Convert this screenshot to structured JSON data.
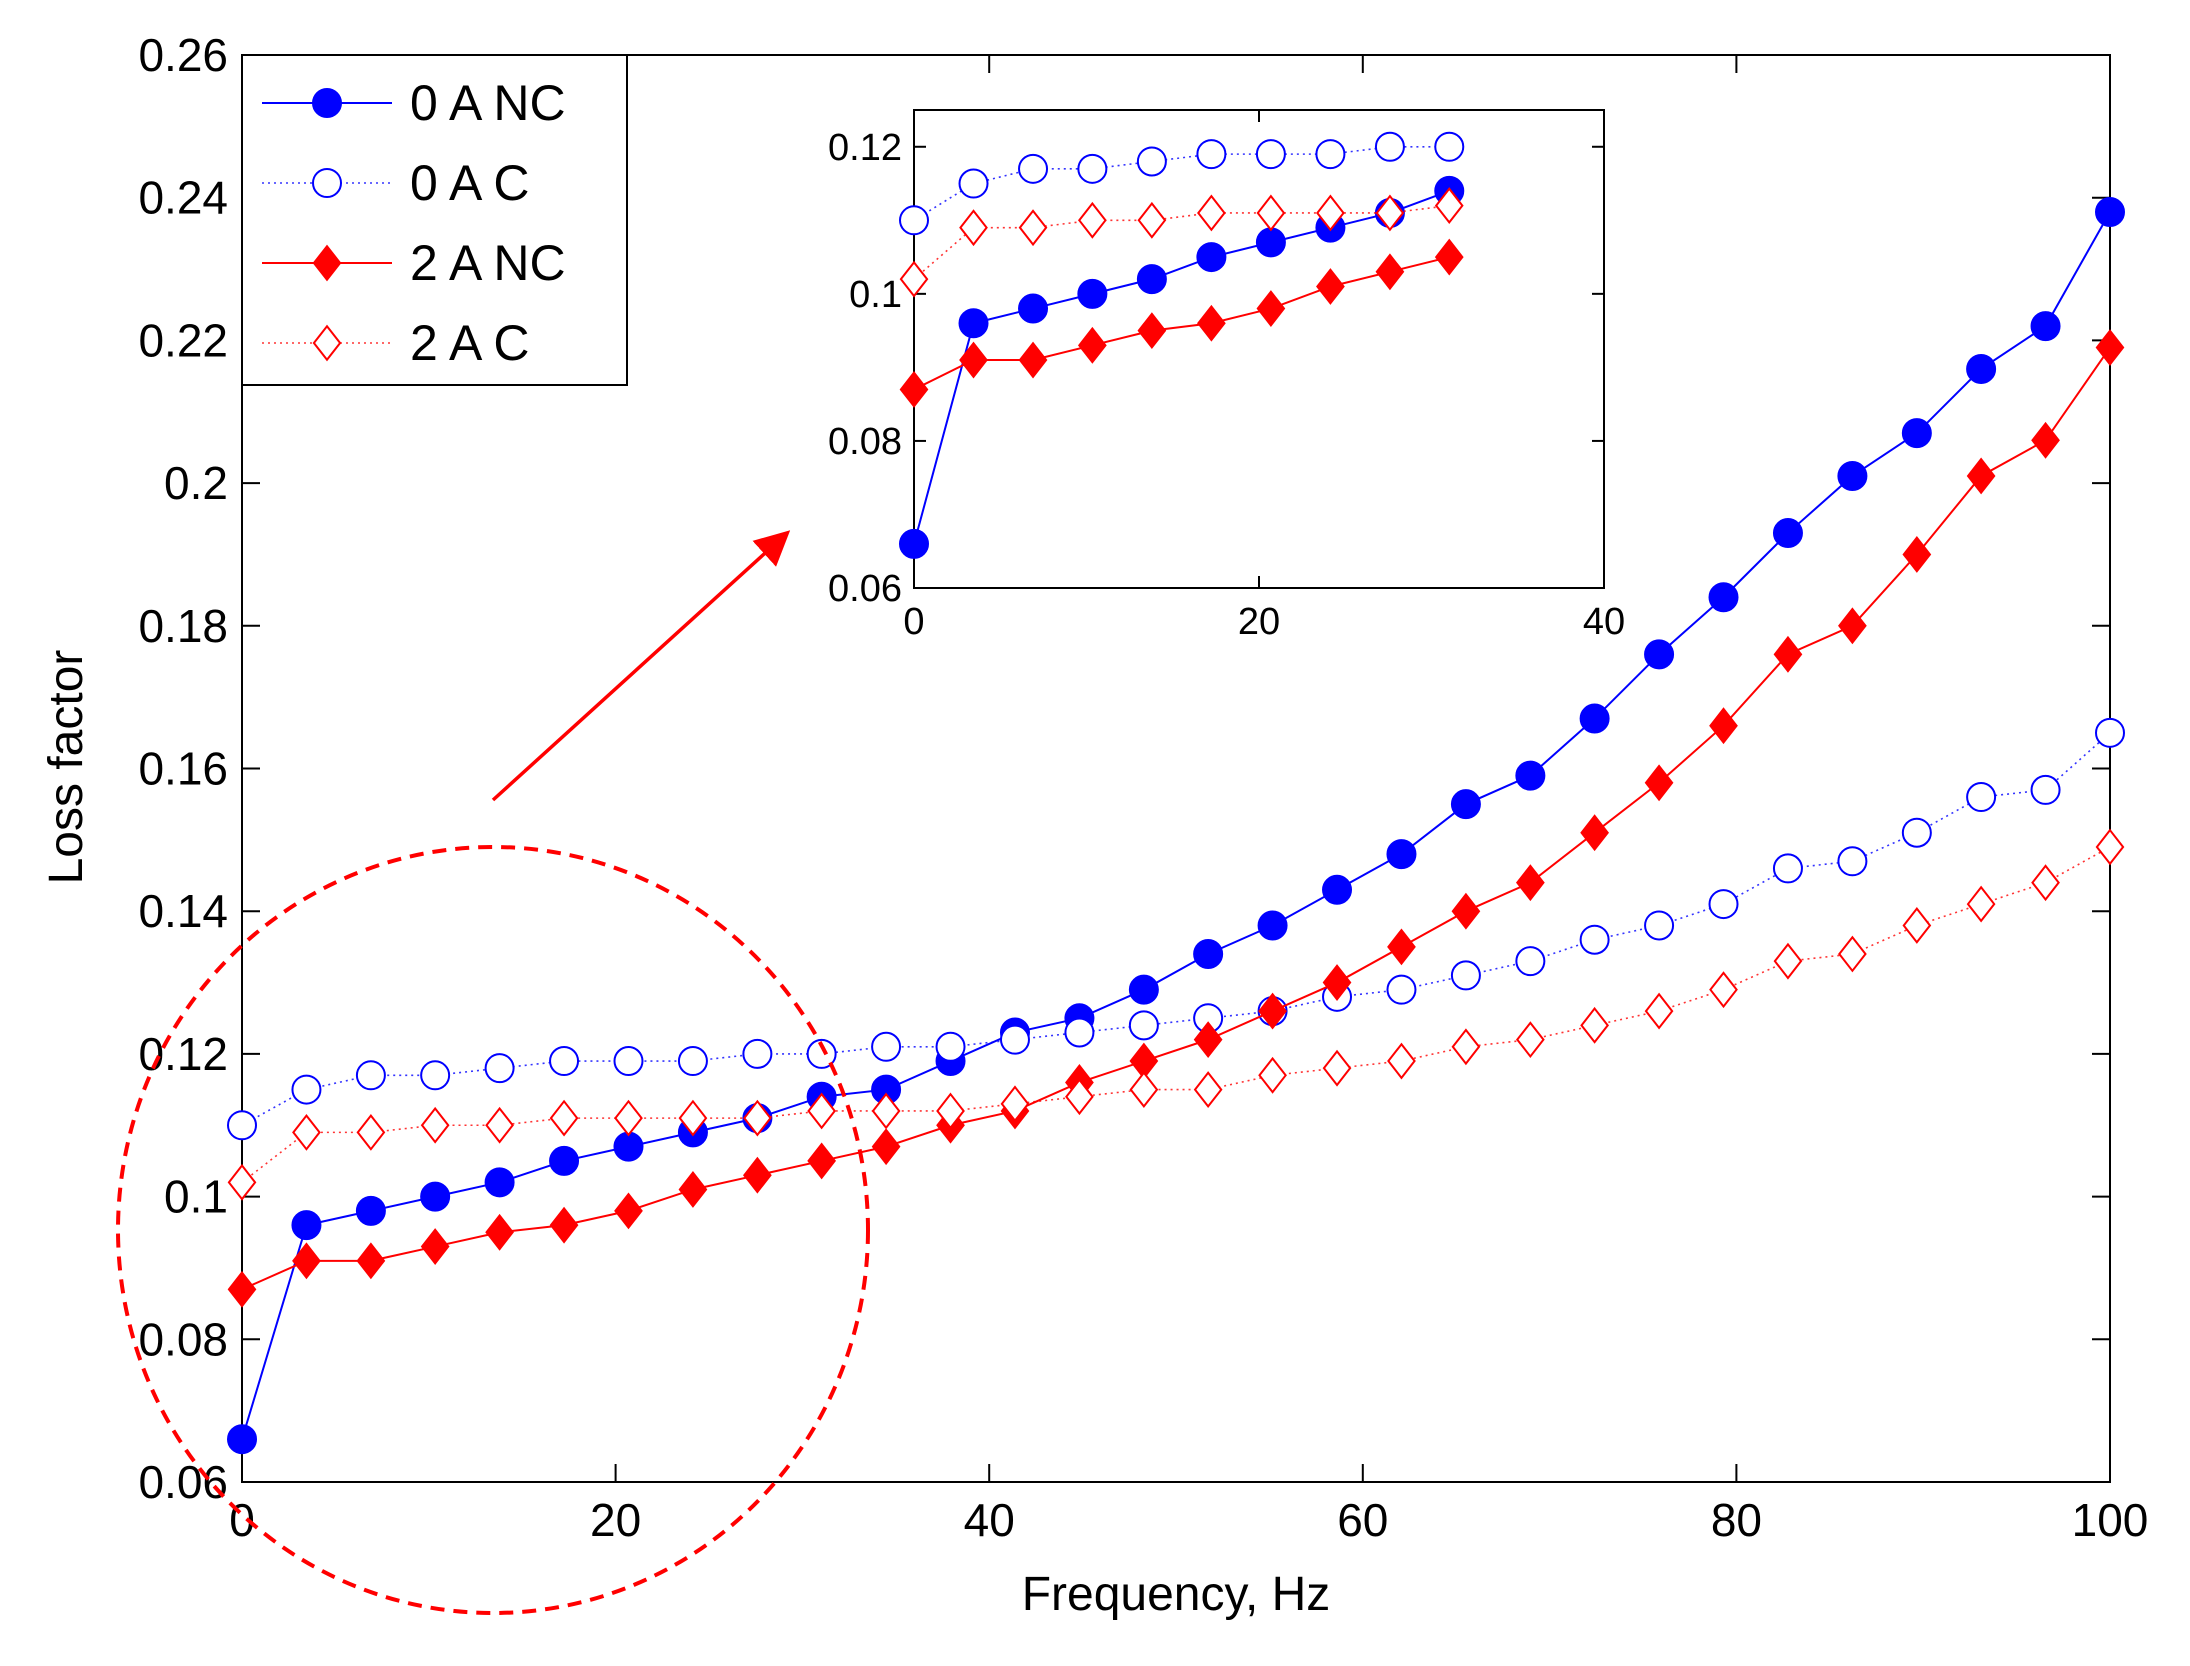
{
  "chart_data": {
    "type": "line",
    "xlabel": "Frequency, Hz",
    "ylabel": "Loss factor",
    "xlim": [
      0,
      100
    ],
    "ylim": [
      0.06,
      0.26
    ],
    "xticks": [
      "0",
      "20",
      "40",
      "60",
      "80",
      "100"
    ],
    "yticks": [
      "0.06",
      "0.08",
      "0.1",
      "0.12",
      "0.14",
      "0.16",
      "0.18",
      "0.2",
      "0.22",
      "0.24",
      "0.26"
    ],
    "legend_position": "top-left",
    "x": [
      0,
      3.45,
      6.9,
      10.34,
      13.79,
      17.24,
      20.69,
      24.14,
      27.59,
      31.03,
      34.48,
      37.93,
      41.38,
      44.83,
      48.28,
      51.72,
      55.17,
      58.62,
      62.07,
      65.52,
      68.97,
      72.41,
      75.86,
      79.31,
      82.76,
      86.21,
      89.66,
      93.1,
      96.55,
      100
    ],
    "series": [
      {
        "name": "0 A NC",
        "color": "#0000ff",
        "marker": "filled-circle",
        "line": "solid",
        "values": [
          0.066,
          0.096,
          0.098,
          0.1,
          0.102,
          0.105,
          0.107,
          0.109,
          0.111,
          0.114,
          0.115,
          0.119,
          0.123,
          0.125,
          0.129,
          0.134,
          0.138,
          0.143,
          0.148,
          0.155,
          0.159,
          0.167,
          0.176,
          0.184,
          0.193,
          0.201,
          0.207,
          0.216,
          0.222,
          0.238
        ]
      },
      {
        "name": "0 A C",
        "color": "#0000ff",
        "marker": "open-circle",
        "line": "dotted",
        "values": [
          0.11,
          0.115,
          0.117,
          0.117,
          0.118,
          0.119,
          0.119,
          0.119,
          0.12,
          0.12,
          0.121,
          0.121,
          0.122,
          0.123,
          0.124,
          0.125,
          0.126,
          0.128,
          0.129,
          0.131,
          0.133,
          0.136,
          0.138,
          0.141,
          0.146,
          0.147,
          0.151,
          0.156,
          0.157,
          0.165
        ]
      },
      {
        "name": "2 A NC",
        "color": "#ff0000",
        "marker": "filled-diamond",
        "line": "solid",
        "values": [
          0.087,
          0.091,
          0.091,
          0.093,
          0.095,
          0.096,
          0.098,
          0.101,
          0.103,
          0.105,
          0.107,
          0.11,
          0.112,
          0.116,
          0.119,
          0.122,
          0.126,
          0.13,
          0.135,
          0.14,
          0.144,
          0.151,
          0.158,
          0.166,
          0.176,
          0.18,
          0.19,
          0.201,
          0.206,
          0.219
        ]
      },
      {
        "name": "2 A C",
        "color": "#ff0000",
        "marker": "open-diamond",
        "line": "dotted",
        "values": [
          0.102,
          0.109,
          0.109,
          0.11,
          0.11,
          0.111,
          0.111,
          0.111,
          0.111,
          0.112,
          0.112,
          0.112,
          0.113,
          0.114,
          0.115,
          0.115,
          0.117,
          0.118,
          0.119,
          0.121,
          0.122,
          0.124,
          0.126,
          0.129,
          0.133,
          0.134,
          0.138,
          0.141,
          0.144,
          0.149
        ]
      }
    ],
    "inset": {
      "xlim": [
        0,
        40
      ],
      "ylim": [
        0.06,
        0.125
      ],
      "xticks": [
        "0",
        "20",
        "40"
      ],
      "yticks": [
        "0.06",
        "0.08",
        "0.1",
        "0.12"
      ],
      "point_count": 10,
      "annotation": "dashed red circle around 0–33 Hz region with arrow to inset"
    }
  }
}
